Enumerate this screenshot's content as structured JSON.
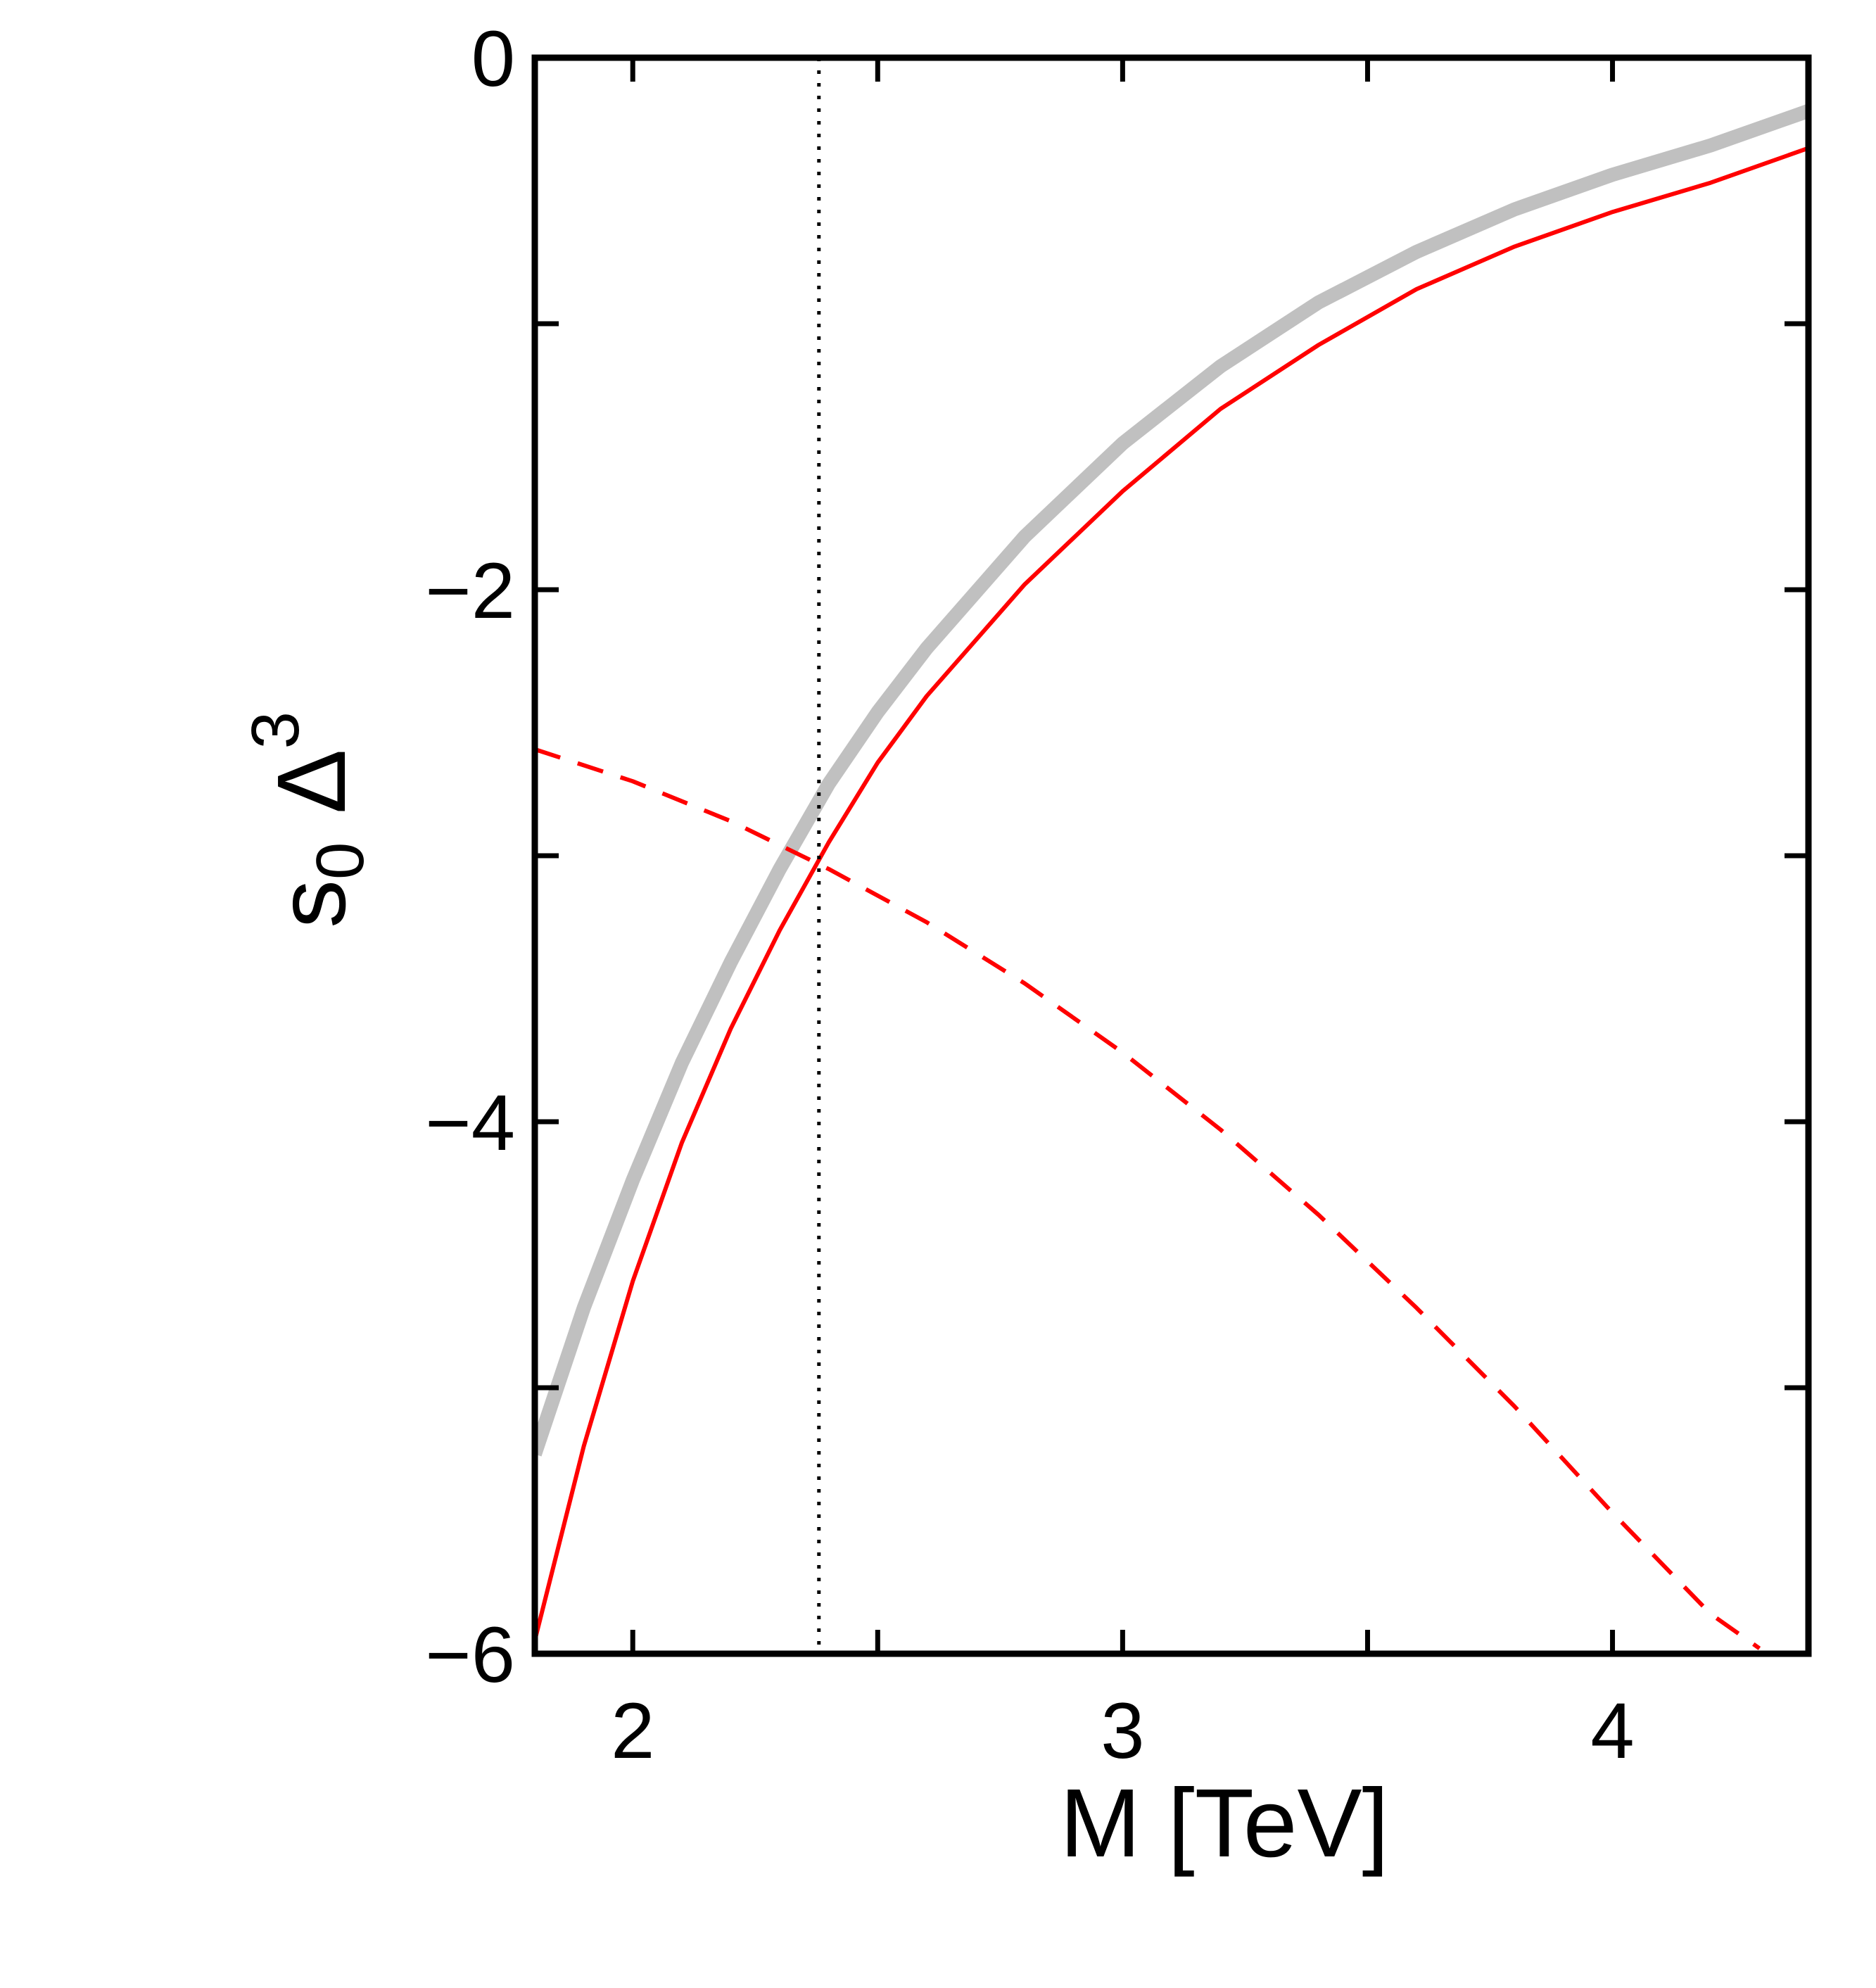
{
  "chart_data": {
    "type": "line",
    "title": "",
    "xlabel": "M [TeV]",
    "ylabel": {
      "main": "s",
      "subscript": "0",
      "greek": "Δ",
      "superscript": "3"
    },
    "xlim": [
      1.8,
      4.4
    ],
    "ylim": [
      -6,
      0
    ],
    "x_ticks": [
      2,
      3,
      4
    ],
    "x_tick_labels": [
      "2",
      "3",
      "4"
    ],
    "x_minor_ticks": [
      2.5,
      3.5
    ],
    "y_ticks": [
      0,
      -2,
      -4,
      -6
    ],
    "y_tick_labels": [
      "0",
      "−2",
      "−4",
      "−6"
    ],
    "y_minor_ticks": [
      -1,
      -3,
      -5
    ],
    "grid": false,
    "legend": "none",
    "vline": {
      "x": 2.38,
      "style": "dotted",
      "color": "#000000"
    },
    "series": [
      {
        "style": "solid-thick",
        "color": "#c0c0c0",
        "x": [
          1.8,
          1.9,
          2.0,
          2.1,
          2.2,
          2.3,
          2.4,
          2.5,
          2.6,
          2.8,
          3.0,
          3.2,
          3.4,
          3.6,
          3.8,
          4.0,
          4.2,
          4.4
        ],
        "y": [
          -5.25,
          -4.7,
          -4.22,
          -3.78,
          -3.4,
          -3.05,
          -2.73,
          -2.46,
          -2.22,
          -1.8,
          -1.45,
          -1.16,
          -0.92,
          -0.73,
          -0.57,
          -0.44,
          -0.33,
          -0.2
        ]
      },
      {
        "style": "solid",
        "color": "#ff0000",
        "x": [
          1.8,
          1.9,
          2.0,
          2.1,
          2.2,
          2.3,
          2.4,
          2.5,
          2.6,
          2.8,
          3.0,
          3.2,
          3.4,
          3.6,
          3.8,
          4.0,
          4.2,
          4.4
        ],
        "y": [
          -5.95,
          -5.22,
          -4.6,
          -4.08,
          -3.65,
          -3.28,
          -2.95,
          -2.65,
          -2.4,
          -1.98,
          -1.63,
          -1.32,
          -1.08,
          -0.87,
          -0.71,
          -0.58,
          -0.47,
          -0.34
        ]
      },
      {
        "style": "dashed",
        "color": "#ff0000",
        "x": [
          1.8,
          2.0,
          2.2,
          2.4,
          2.6,
          2.8,
          3.0,
          3.2,
          3.4,
          3.6,
          3.8,
          4.0,
          4.2,
          4.3
        ],
        "y": [
          -2.6,
          -2.72,
          -2.87,
          -3.05,
          -3.25,
          -3.48,
          -3.74,
          -4.03,
          -4.35,
          -4.7,
          -5.07,
          -5.47,
          -5.85,
          -5.98
        ]
      }
    ]
  }
}
